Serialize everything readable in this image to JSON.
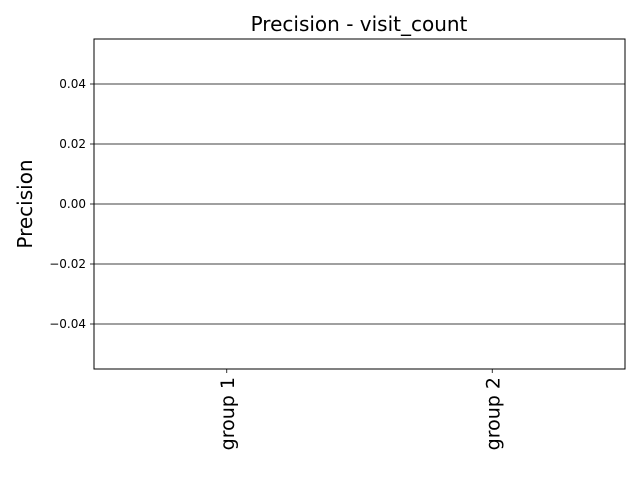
{
  "chart_data": {
    "type": "bar",
    "title": "Precision - visit_count",
    "xlabel": "",
    "ylabel": "Precision",
    "categories": [
      "group 1",
      "group 2"
    ],
    "series": [
      {
        "values": [
          0,
          0
        ]
      }
    ],
    "ylim": [
      -0.055,
      0.055
    ],
    "yticks": [
      -0.04,
      -0.02,
      0.0,
      0.02,
      0.04
    ],
    "ytick_labels": [
      "−0.04",
      "−0.02",
      "0.00",
      "0.02",
      "0.04"
    ],
    "grid": "y",
    "legend": "none",
    "colors": {
      "grid": "#000000",
      "axis": "#000000",
      "background": "#ffffff"
    }
  }
}
